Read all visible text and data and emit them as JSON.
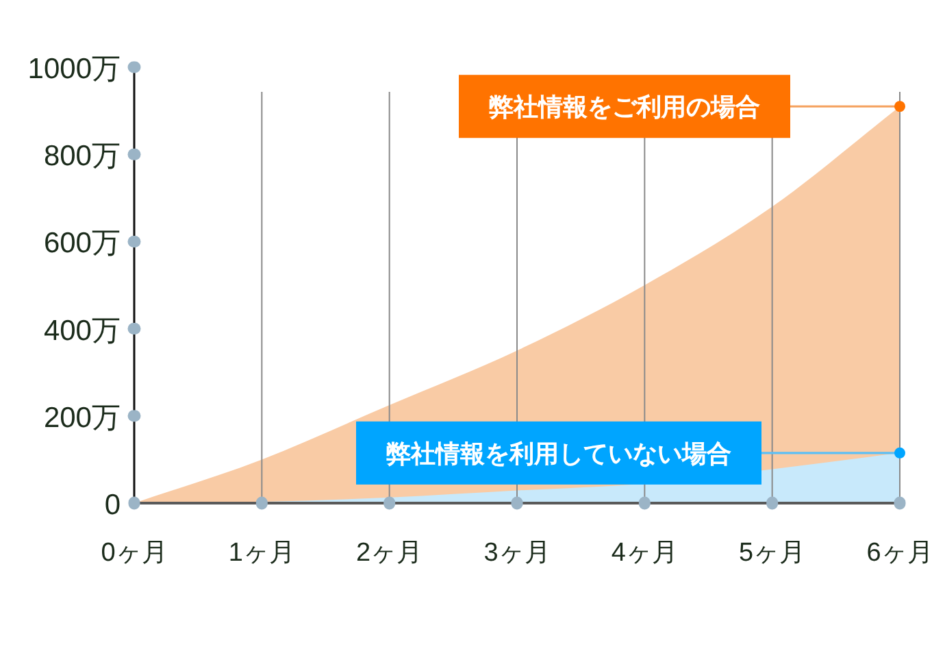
{
  "chart_data": {
    "type": "area",
    "categories": [
      "0ヶ月",
      "1ヶ月",
      "2ヶ月",
      "3ヶ月",
      "4ヶ月",
      "5ヶ月",
      "6ヶ月"
    ],
    "ylim": [
      0,
      1000
    ],
    "yticks": [
      {
        "value": 0,
        "label": "0"
      },
      {
        "value": 200,
        "label": "200万"
      },
      {
        "value": 400,
        "label": "400万"
      },
      {
        "value": 600,
        "label": "600万"
      },
      {
        "value": 800,
        "label": "800万"
      },
      {
        "value": 1000,
        "label": "1000万"
      }
    ],
    "grid": "x",
    "series": [
      {
        "name": "弊社情報をご利用の場合",
        "color": "#f9cba5",
        "values": [
          0,
          100,
          225,
          350,
          500,
          680,
          910
        ]
      },
      {
        "name": "弊社情報を利用していない場合",
        "color": "#c8e9fb",
        "values": [
          0,
          3,
          13,
          29,
          45,
          78,
          115
        ]
      }
    ]
  }
}
